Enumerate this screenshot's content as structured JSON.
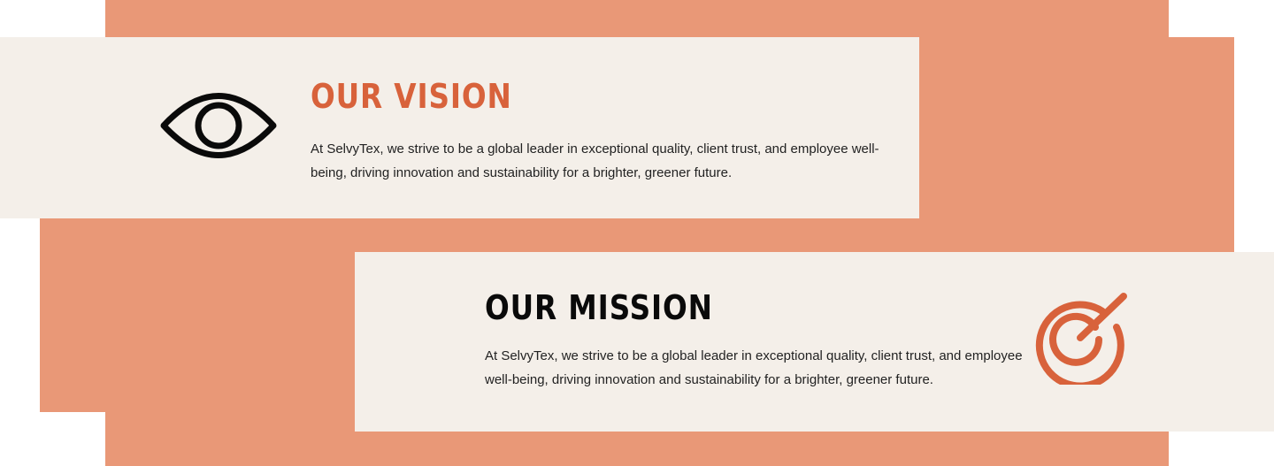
{
  "colors": {
    "accent": "#d8623b",
    "band": "#e99877",
    "card": "#f4efe9",
    "text": "#222222",
    "heading_dark": "#0a0a0a"
  },
  "vision": {
    "title": "OUR VISION",
    "text": "At SelvyTex, we strive to be a global leader in exceptional quality, client trust, and employee well-being, driving innovation and sustainability for a brighter, greener future.",
    "icon": "eye-icon"
  },
  "mission": {
    "title": "OUR MISSION",
    "text": "At SelvyTex, we strive to be a global leader in exceptional quality, client trust, and employee well-being, driving innovation and sustainability for a brighter, greener future.",
    "icon": "target-icon"
  }
}
